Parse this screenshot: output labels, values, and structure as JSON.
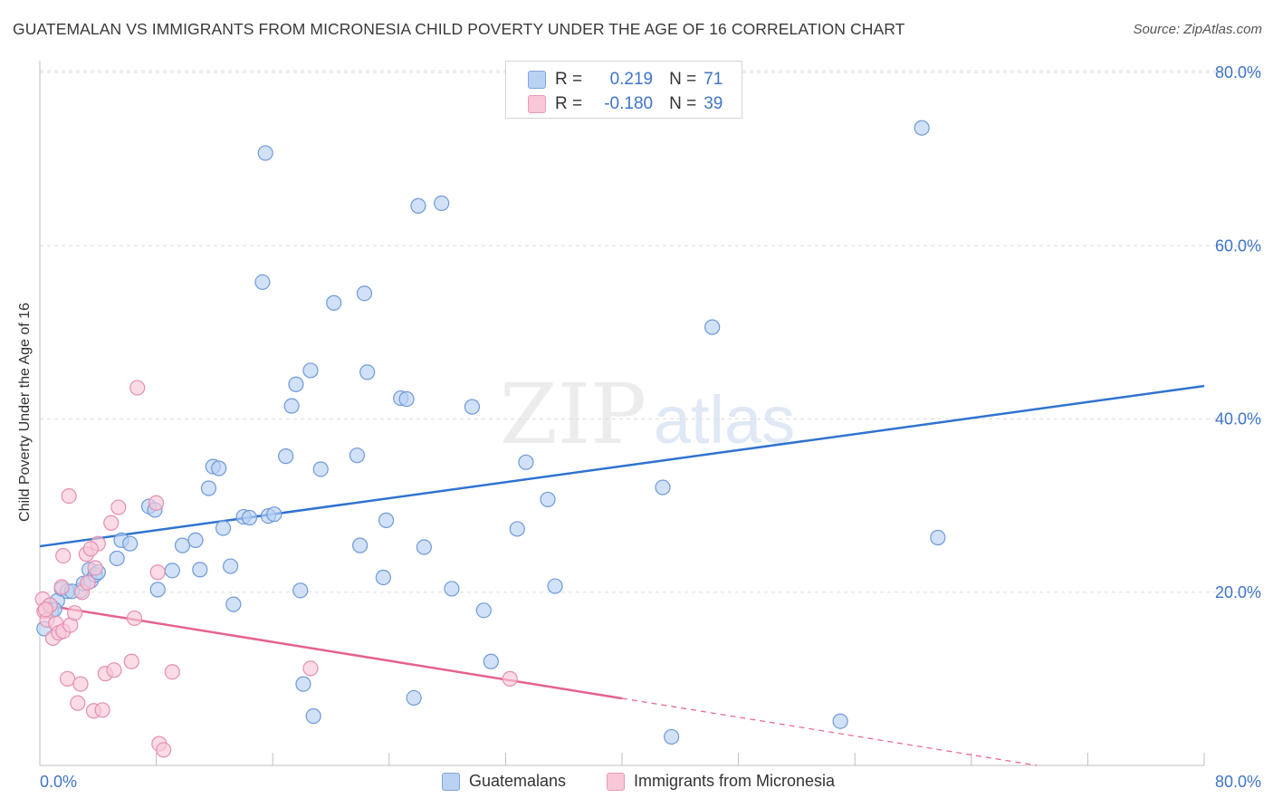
{
  "header": {
    "title": "GUATEMALAN VS IMMIGRANTS FROM MICRONESIA CHILD POVERTY UNDER THE AGE OF 16 CORRELATION CHART",
    "source": "Source: ZipAtlas.com"
  },
  "watermark": {
    "zip": "ZIP",
    "atlas": "atlas"
  },
  "legend": {
    "r_label": "R =",
    "n_label": "N =",
    "series1": {
      "r": "0.219",
      "n": "71"
    },
    "series2": {
      "r": "-0.180",
      "n": "39"
    }
  },
  "bottom_legend": {
    "series1": "Guatemalans",
    "series2": "Immigrants from Micronesia"
  },
  "colors": {
    "blue_fill": "#b9d1f2",
    "blue_edge": "#6e9ad8",
    "blue_line": "#2f73d0",
    "pink_fill": "#f8c7d8",
    "pink_edge": "#e58fb0",
    "pink_line": "#e5628f",
    "tick_text": "#3f74c9",
    "grid": "#dddddd"
  },
  "chart_data": {
    "type": "scatter",
    "title": "GUATEMALAN VS IMMIGRANTS FROM MICRONESIA CHILD POVERTY UNDER THE AGE OF 16 CORRELATION CHART",
    "xlabel": "",
    "ylabel": "Child Poverty Under the Age of 16",
    "xlim": [
      0,
      80
    ],
    "ylim": [
      0,
      80
    ],
    "x_tick_labels": [
      "0.0%",
      "80.0%"
    ],
    "y_ticks": [
      {
        "value": 20,
        "label": "20.0%"
      },
      {
        "value": 40,
        "label": "40.0%"
      },
      {
        "value": 60,
        "label": "60.0%"
      },
      {
        "value": 80,
        "label": "80.0%"
      }
    ],
    "grid": true,
    "series": [
      {
        "name": "Guatemalans",
        "r": 0.219,
        "n": 71,
        "trend": {
          "x0": 0,
          "y0": 25.3,
          "x1": 80,
          "y1": 43.8,
          "dashed_from": null
        },
        "points": [
          [
            0.3,
            15.8
          ],
          [
            0.7,
            18.5
          ],
          [
            0.8,
            17.8
          ],
          [
            1.2,
            19.0
          ],
          [
            1.5,
            20.4
          ],
          [
            1.9,
            20.1
          ],
          [
            2.8,
            20.2
          ],
          [
            3.0,
            21.0
          ],
          [
            3.4,
            22.6
          ],
          [
            3.5,
            21.3
          ],
          [
            3.8,
            22.0
          ],
          [
            5.3,
            23.9
          ],
          [
            5.6,
            26.0
          ],
          [
            6.2,
            25.6
          ],
          [
            7.5,
            29.9
          ],
          [
            7.9,
            29.5
          ],
          [
            9.1,
            22.5
          ],
          [
            9.8,
            25.4
          ],
          [
            10.7,
            26.0
          ],
          [
            11.0,
            22.6
          ],
          [
            11.6,
            32.0
          ],
          [
            11.9,
            34.5
          ],
          [
            12.3,
            34.3
          ],
          [
            12.6,
            27.4
          ],
          [
            13.1,
            23.0
          ],
          [
            13.3,
            18.6
          ],
          [
            14.0,
            28.7
          ],
          [
            14.4,
            28.6
          ],
          [
            15.3,
            55.8
          ],
          [
            15.5,
            70.7
          ],
          [
            15.7,
            28.8
          ],
          [
            16.1,
            29.0
          ],
          [
            16.9,
            35.7
          ],
          [
            17.3,
            41.5
          ],
          [
            17.6,
            44.0
          ],
          [
            17.9,
            20.2
          ],
          [
            18.1,
            9.4
          ],
          [
            18.6,
            45.6
          ],
          [
            18.8,
            5.7
          ],
          [
            19.3,
            34.2
          ],
          [
            20.2,
            53.4
          ],
          [
            21.8,
            35.8
          ],
          [
            22.0,
            25.4
          ],
          [
            22.3,
            54.5
          ],
          [
            22.5,
            45.4
          ],
          [
            23.6,
            21.7
          ],
          [
            23.8,
            28.3
          ],
          [
            24.8,
            42.4
          ],
          [
            25.2,
            42.3
          ],
          [
            25.7,
            7.8
          ],
          [
            26.0,
            64.6
          ],
          [
            26.4,
            25.2
          ],
          [
            27.6,
            64.9
          ],
          [
            28.3,
            20.4
          ],
          [
            29.7,
            41.4
          ],
          [
            30.5,
            17.9
          ],
          [
            31.0,
            12.0
          ],
          [
            32.8,
            27.3
          ],
          [
            33.4,
            35.0
          ],
          [
            34.9,
            30.7
          ],
          [
            35.4,
            20.7
          ],
          [
            42.8,
            32.1
          ],
          [
            43.4,
            3.3
          ],
          [
            46.2,
            50.6
          ],
          [
            55.0,
            5.1
          ],
          [
            60.6,
            73.6
          ],
          [
            61.7,
            26.3
          ],
          [
            1.0,
            18.0
          ],
          [
            2.2,
            20.1
          ],
          [
            4.0,
            22.3
          ],
          [
            8.1,
            20.3
          ]
        ]
      },
      {
        "name": "Immigrants from Micronesia",
        "r": -0.18,
        "n": 39,
        "trend": {
          "x0": 0,
          "y0": 18.6,
          "x1": 68.5,
          "y1": 0,
          "dashed_from": 40
        },
        "points": [
          [
            0.2,
            19.2
          ],
          [
            0.3,
            17.8
          ],
          [
            0.5,
            16.8
          ],
          [
            0.7,
            18.5
          ],
          [
            0.9,
            14.7
          ],
          [
            1.1,
            16.4
          ],
          [
            1.3,
            15.3
          ],
          [
            1.5,
            20.6
          ],
          [
            1.6,
            15.5
          ],
          [
            1.6,
            24.2
          ],
          [
            1.9,
            10.0
          ],
          [
            2.0,
            31.1
          ],
          [
            2.1,
            16.2
          ],
          [
            2.4,
            17.6
          ],
          [
            2.6,
            7.2
          ],
          [
            2.8,
            9.4
          ],
          [
            2.9,
            20.0
          ],
          [
            3.2,
            24.4
          ],
          [
            3.3,
            21.1
          ],
          [
            3.7,
            6.3
          ],
          [
            3.8,
            22.8
          ],
          [
            4.0,
            25.6
          ],
          [
            4.3,
            6.4
          ],
          [
            4.5,
            10.6
          ],
          [
            4.9,
            28.0
          ],
          [
            5.1,
            11.0
          ],
          [
            5.4,
            29.8
          ],
          [
            6.3,
            12.0
          ],
          [
            6.5,
            17.0
          ],
          [
            6.7,
            43.6
          ],
          [
            8.0,
            30.3
          ],
          [
            8.1,
            22.3
          ],
          [
            8.2,
            2.5
          ],
          [
            8.5,
            1.8
          ],
          [
            9.1,
            10.8
          ],
          [
            18.6,
            11.2
          ],
          [
            32.3,
            10.0
          ],
          [
            0.4,
            18.0
          ],
          [
            3.5,
            25.0
          ]
        ]
      }
    ]
  }
}
